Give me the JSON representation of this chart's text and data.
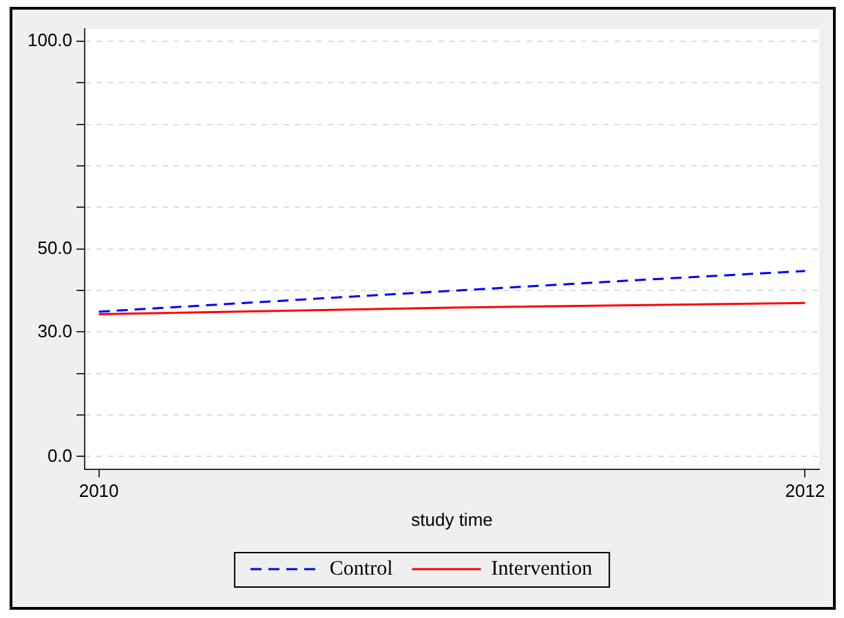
{
  "chart_data": {
    "type": "line",
    "xlabel": "study time",
    "x": [
      2010,
      2010.65,
      2011.5,
      2012
    ],
    "series": [
      {
        "name": "Control",
        "color": "#0000ff",
        "line_style": "dashed",
        "values": [
          34.9,
          38.2,
          42.4,
          44.7
        ]
      },
      {
        "name": "Intervention",
        "color": "#ff0000",
        "line_style": "solid",
        "x": [
          2010,
          2011,
          2012
        ],
        "values": [
          34.3,
          35.9,
          37.0
        ]
      }
    ],
    "xlim": [
      2009.96,
      2012.04
    ],
    "xticks": [
      2010,
      2012
    ],
    "ylim": [
      -3,
      103
    ],
    "yticks": [
      {
        "value": 0,
        "label": "0.0"
      },
      {
        "value": 10,
        "label": null
      },
      {
        "value": 20,
        "label": null
      },
      {
        "value": 30,
        "label": "30.0"
      },
      {
        "value": 40,
        "label": null
      },
      {
        "value": 50,
        "label": "50.0"
      },
      {
        "value": 60,
        "label": null
      },
      {
        "value": 70,
        "label": null
      },
      {
        "value": 80,
        "label": null
      },
      {
        "value": 90,
        "label": null
      },
      {
        "value": 100,
        "label": "100.0"
      }
    ],
    "grid": "y",
    "legend": "bottom",
    "marker": "none"
  }
}
